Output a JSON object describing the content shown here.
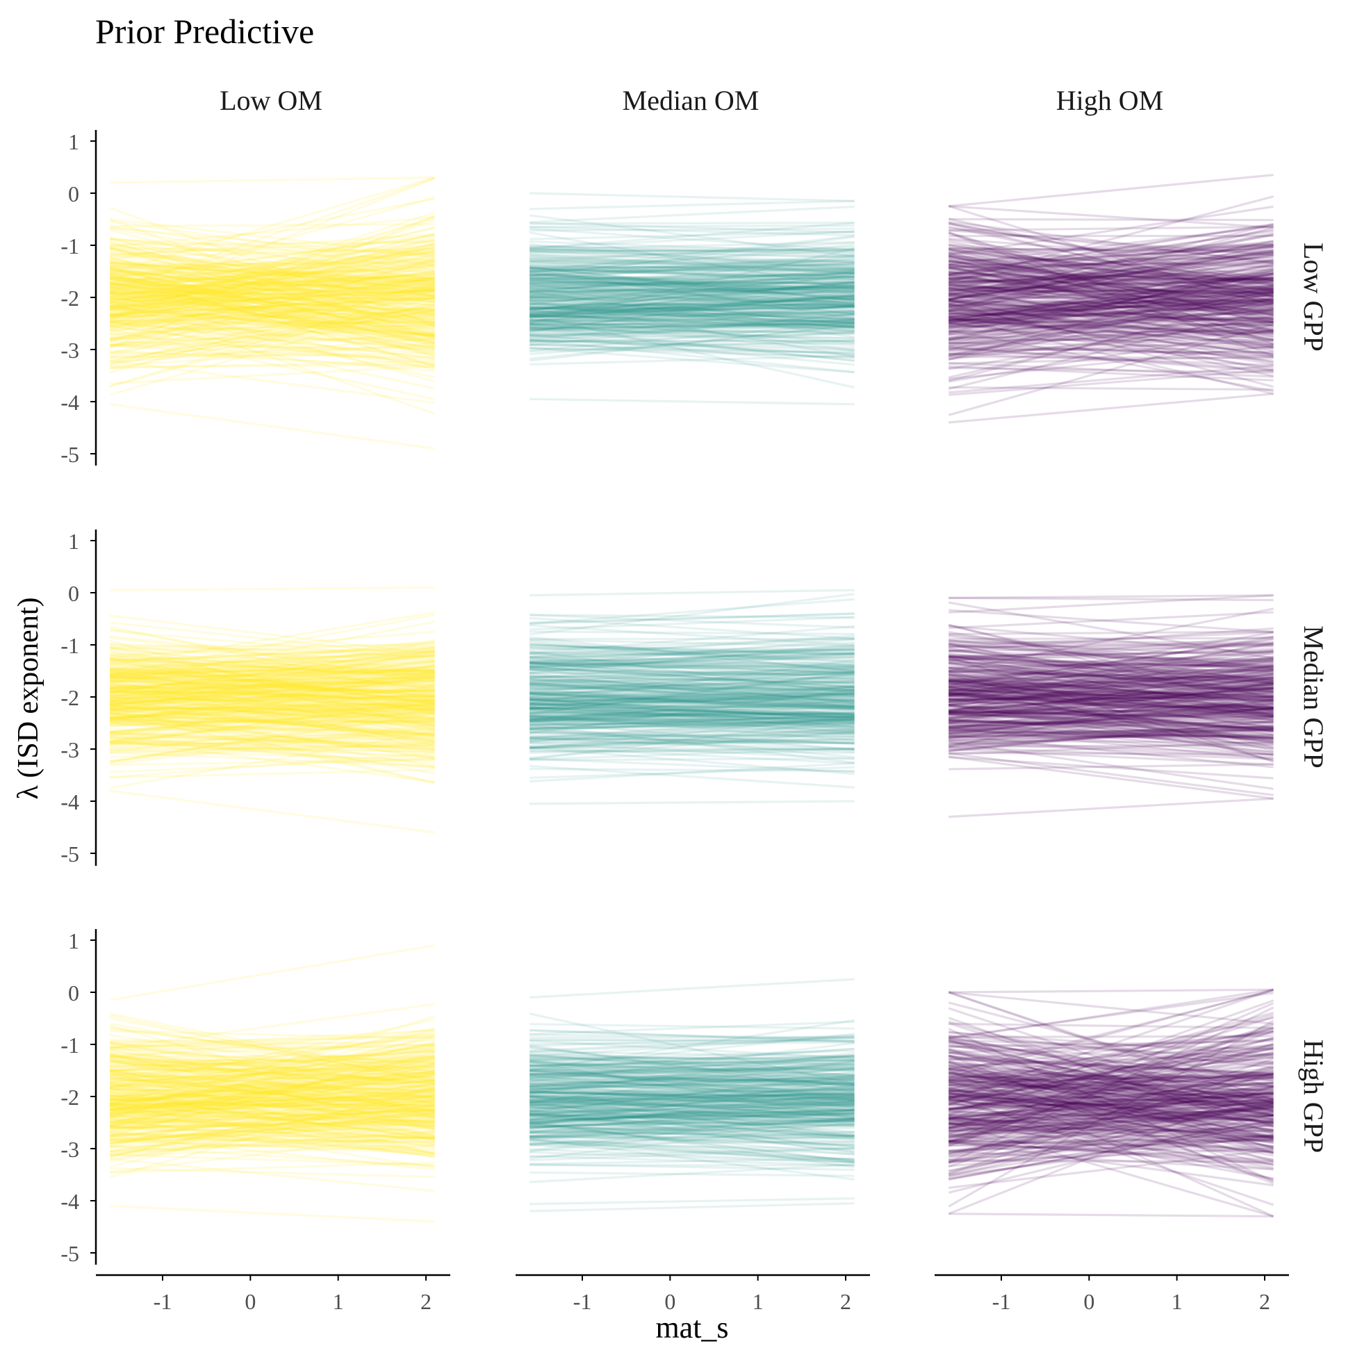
{
  "chart_data": {
    "type": "line",
    "title": "Prior Predictive",
    "xlabel": "mat_s",
    "ylabel": "λ (ISD exponent)",
    "xlim": [
      -1.6,
      2.1
    ],
    "ylim": [
      -5,
      1
    ],
    "x_ticks": [
      -1,
      0,
      1,
      2
    ],
    "x_tick_labels": [
      "-1",
      "0",
      "1",
      "2"
    ],
    "y_ticks": [
      1,
      0,
      -1,
      -2,
      -3,
      -4,
      -5
    ],
    "y_tick_labels": [
      "1",
      "0",
      "-1",
      "-2",
      "-3",
      "-4",
      "-5"
    ],
    "column_facets": [
      "Low OM",
      "Median OM",
      "High OM"
    ],
    "row_facets": [
      "Low GPP",
      "Median GPP",
      "High GPP"
    ],
    "column_colors": [
      "#fde725",
      "#21918c",
      "#440154"
    ],
    "column_alpha": [
      0.14,
      0.11,
      0.14
    ],
    "lines_per_panel": 300,
    "panel_line_summary": [
      [
        {
          "intercept_mean": -2.05,
          "intercept_sd": 0.55,
          "slope_sd": 0.25,
          "max_start": 0.2,
          "min_start": -4.05,
          "max_end": 0.3,
          "min_end": -4.9
        },
        {
          "intercept_mean": -2.05,
          "intercept_sd": 0.55,
          "slope_sd": 0.1,
          "max_start": 0.0,
          "min_start": -3.95,
          "max_end": -0.15,
          "min_end": -4.05
        },
        {
          "intercept_mean": -2.05,
          "intercept_sd": 0.6,
          "slope_sd": 0.2,
          "max_start": -0.25,
          "min_start": -4.4,
          "max_end": 0.35,
          "min_end": -3.85
        }
      ],
      [
        {
          "intercept_mean": -2.05,
          "intercept_sd": 0.55,
          "slope_sd": 0.15,
          "max_start": 0.05,
          "min_start": -3.8,
          "max_end": 0.1,
          "min_end": -4.6
        },
        {
          "intercept_mean": -2.0,
          "intercept_sd": 0.55,
          "slope_sd": 0.08,
          "max_start": -0.05,
          "min_start": -4.05,
          "max_end": 0.05,
          "min_end": -4.0
        },
        {
          "intercept_mean": -2.05,
          "intercept_sd": 0.6,
          "slope_sd": 0.15,
          "max_start": -0.1,
          "min_start": -4.3,
          "max_end": -0.05,
          "min_end": -3.95
        }
      ],
      [
        {
          "intercept_mean": -2.05,
          "intercept_sd": 0.55,
          "slope_sd": 0.18,
          "max_start": -0.15,
          "min_start": -4.1,
          "max_end": 0.9,
          "min_end": -4.4
        },
        {
          "intercept_mean": -2.05,
          "intercept_sd": 0.55,
          "slope_sd": 0.1,
          "max_start": -0.1,
          "min_start": -4.2,
          "max_end": 0.25,
          "min_end": -4.05
        },
        {
          "intercept_mean": -2.15,
          "intercept_sd": 0.6,
          "slope_sd": 0.3,
          "max_start": 0.0,
          "min_start": -4.25,
          "max_end": 0.05,
          "min_end": -4.3
        }
      ]
    ]
  }
}
